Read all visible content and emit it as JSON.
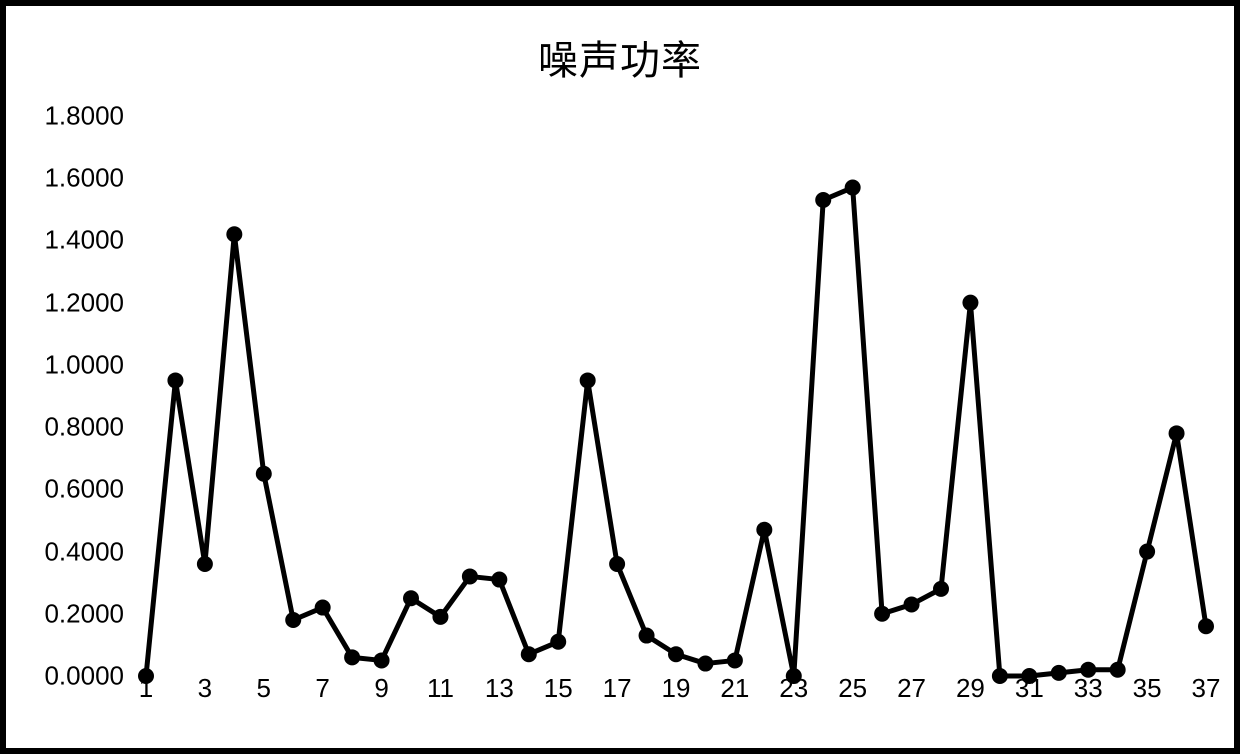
{
  "chart": {
    "type": "line",
    "title": "噪声功率",
    "title_fontsize": 40,
    "background_color": "#ffffff",
    "border_color": "#000000",
    "border_width": 6,
    "line_color": "#000000",
    "line_width": 5,
    "marker_style": "circle",
    "marker_color": "#000000",
    "marker_size": 8,
    "tick_font_size": 26,
    "tick_color": "#000000",
    "y": {
      "min": 0.0,
      "max": 1.8,
      "tick_step": 0.2,
      "tick_labels": [
        "0.0000",
        "0.2000",
        "0.4000",
        "0.6000",
        "0.8000",
        "1.0000",
        "1.2000",
        "1.4000",
        "1.6000",
        "1.8000"
      ],
      "tick_values": [
        0.0,
        0.2,
        0.4,
        0.6,
        0.8,
        1.0,
        1.2,
        1.4,
        1.6,
        1.8
      ]
    },
    "x": {
      "min": 1,
      "max": 37,
      "tick_step": 2,
      "tick_labels": [
        "1",
        "3",
        "5",
        "7",
        "9",
        "11",
        "13",
        "15",
        "17",
        "19",
        "21",
        "23",
        "25",
        "27",
        "29",
        "31",
        "33",
        "35",
        "37"
      ],
      "tick_values": [
        1,
        3,
        5,
        7,
        9,
        11,
        13,
        15,
        17,
        19,
        21,
        23,
        25,
        27,
        29,
        31,
        33,
        35,
        37
      ]
    },
    "series": {
      "x": [
        1,
        2,
        3,
        4,
        5,
        6,
        7,
        8,
        9,
        10,
        11,
        12,
        13,
        14,
        15,
        16,
        17,
        18,
        19,
        20,
        21,
        22,
        23,
        24,
        25,
        26,
        27,
        28,
        29,
        30,
        31,
        32,
        33,
        34,
        35,
        36,
        37
      ],
      "y": [
        0.0,
        0.95,
        0.36,
        1.42,
        0.65,
        0.18,
        0.22,
        0.06,
        0.05,
        0.25,
        0.19,
        0.32,
        0.31,
        0.07,
        0.11,
        0.95,
        0.36,
        0.13,
        0.07,
        0.04,
        0.05,
        0.47,
        0.0,
        1.53,
        1.57,
        0.2,
        0.23,
        0.28,
        1.2,
        0.0,
        0.0,
        0.01,
        0.02,
        0.02,
        0.4,
        0.78,
        0.16
      ]
    }
  }
}
